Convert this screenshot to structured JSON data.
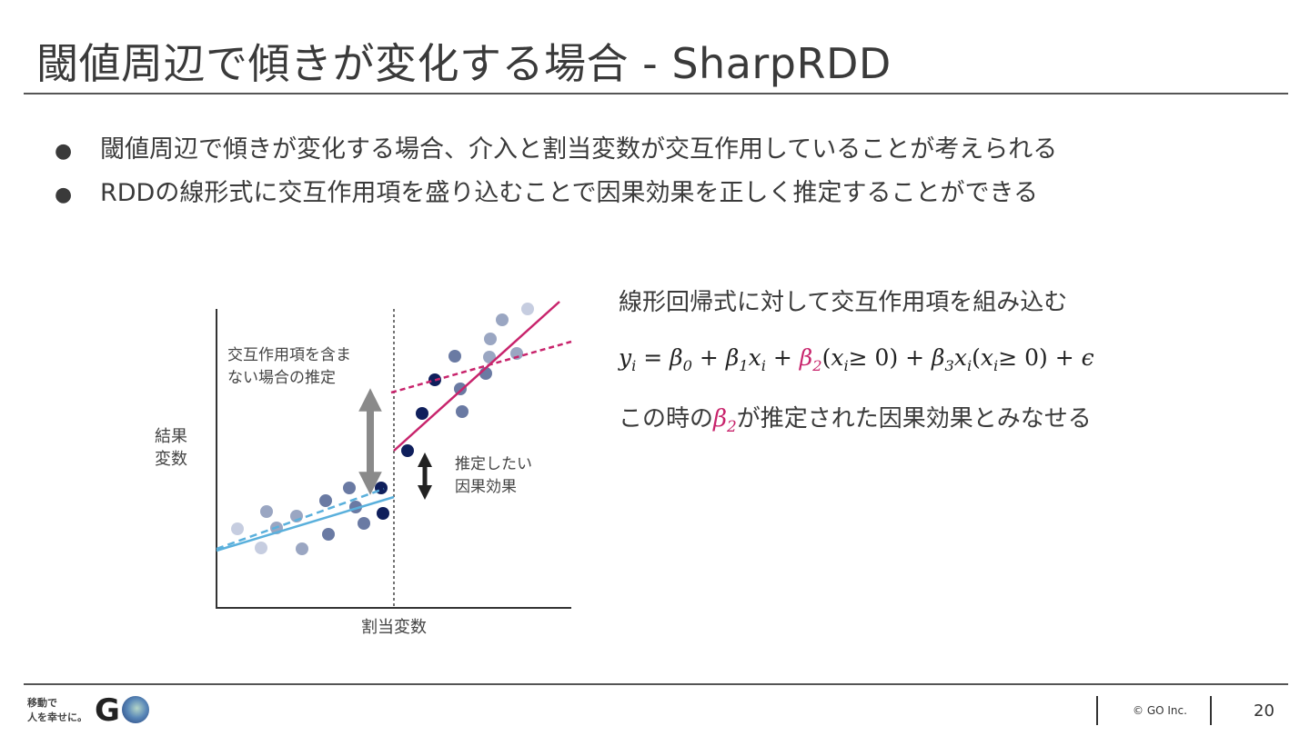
{
  "title": "閾値周辺で傾きが変化する場合 - SharpRDD",
  "bullets": [
    "閾値周辺で傾きが変化する場合、介入と割当変数が交互作用していることが考えられる",
    "RDDの線形式に交互作用項を盛り込むことで因果効果を正しく推定することができる"
  ],
  "bullet_symbol": "●",
  "chart": {
    "ylabel_lines": [
      "結果",
      "変数"
    ],
    "xlabel": "割当変数",
    "annotation_no_interaction_lines": [
      "交互作用項を含ま",
      "ない場合の推定"
    ],
    "annotation_effect_lines": [
      "推定したい",
      "因果効果"
    ]
  },
  "explanation": {
    "line1": "線形回帰式に対して交互作用項を組み込む",
    "formula": {
      "y": "y",
      "i": "i",
      "eq": " = ",
      "beta": "β",
      "s0": "0",
      "s1": "1",
      "s2": "2",
      "s3": "3",
      "x": "x",
      "plus": " + ",
      "open": "(",
      "geq": "≥ 0)",
      "epsilon": "ϵ"
    },
    "line3_prefix": "この時の",
    "line3_suffix": "が推定された因果効果とみなせる"
  },
  "footer": {
    "logo_text_lines": [
      "移動で",
      "人を幸せに。"
    ],
    "logo_letter": "G",
    "copyright": "© GO Inc.",
    "page_number": "20"
  },
  "colors": {
    "pink": "#c8246c",
    "light_blue": "#5ab0dc",
    "arrow_gray": "#8a8a8a",
    "arrow_dark": "#222222",
    "dot_light": "#c6cde0",
    "dot_mid_light": "#9aa6c2",
    "dot_mid": "#6a7aa3",
    "dot_dark": "#0f1f5c"
  }
}
